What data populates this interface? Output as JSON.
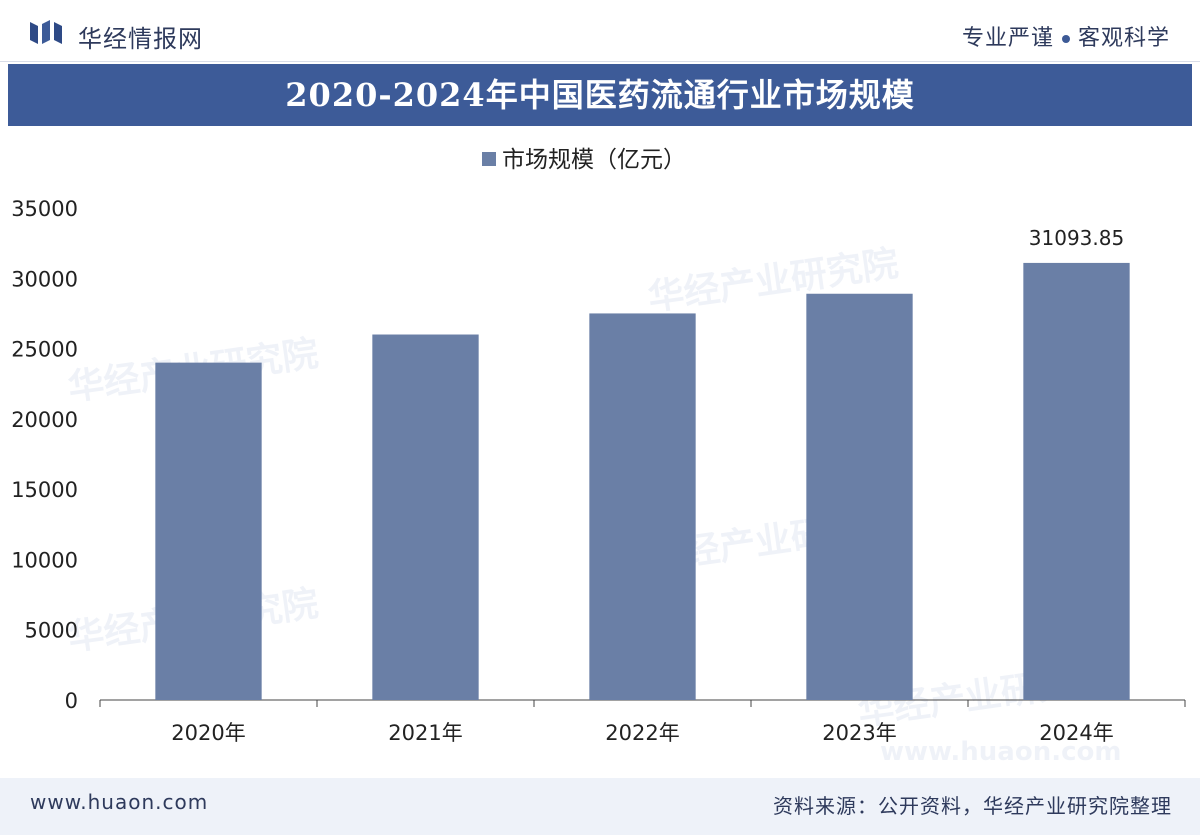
{
  "header": {
    "brand_name": "华经情报网",
    "slogan_left": "专业严谨",
    "slogan_right": "客观科学",
    "logo_icon": "huajing-logo-icon"
  },
  "title": "2020-2024年中国医药流通行业市场规模",
  "watermark": {
    "text": "华经产业研究院",
    "url": "www.huaon.com"
  },
  "colors": {
    "bar": "#6a7fa6",
    "banner": "#3d5b98",
    "axis": "#444444"
  },
  "chart_data": {
    "type": "bar",
    "categories": [
      "2020年",
      "2021年",
      "2022年",
      "2023年",
      "2024年"
    ],
    "series": [
      {
        "name": "市场规模（亿元）",
        "values": [
          24000,
          26000,
          27500,
          28900,
          31093.85
        ]
      }
    ],
    "data_labels": [
      "",
      "",
      "",
      "",
      "31093.85"
    ],
    "yticks": [
      0,
      5000,
      10000,
      15000,
      20000,
      25000,
      30000,
      35000
    ],
    "ylim": [
      0,
      35000
    ],
    "legend_position": "top-center",
    "grid": false
  },
  "footer": {
    "website": "www.huaon.com",
    "source": "资料来源：公开资料，华经产业研究院整理"
  }
}
